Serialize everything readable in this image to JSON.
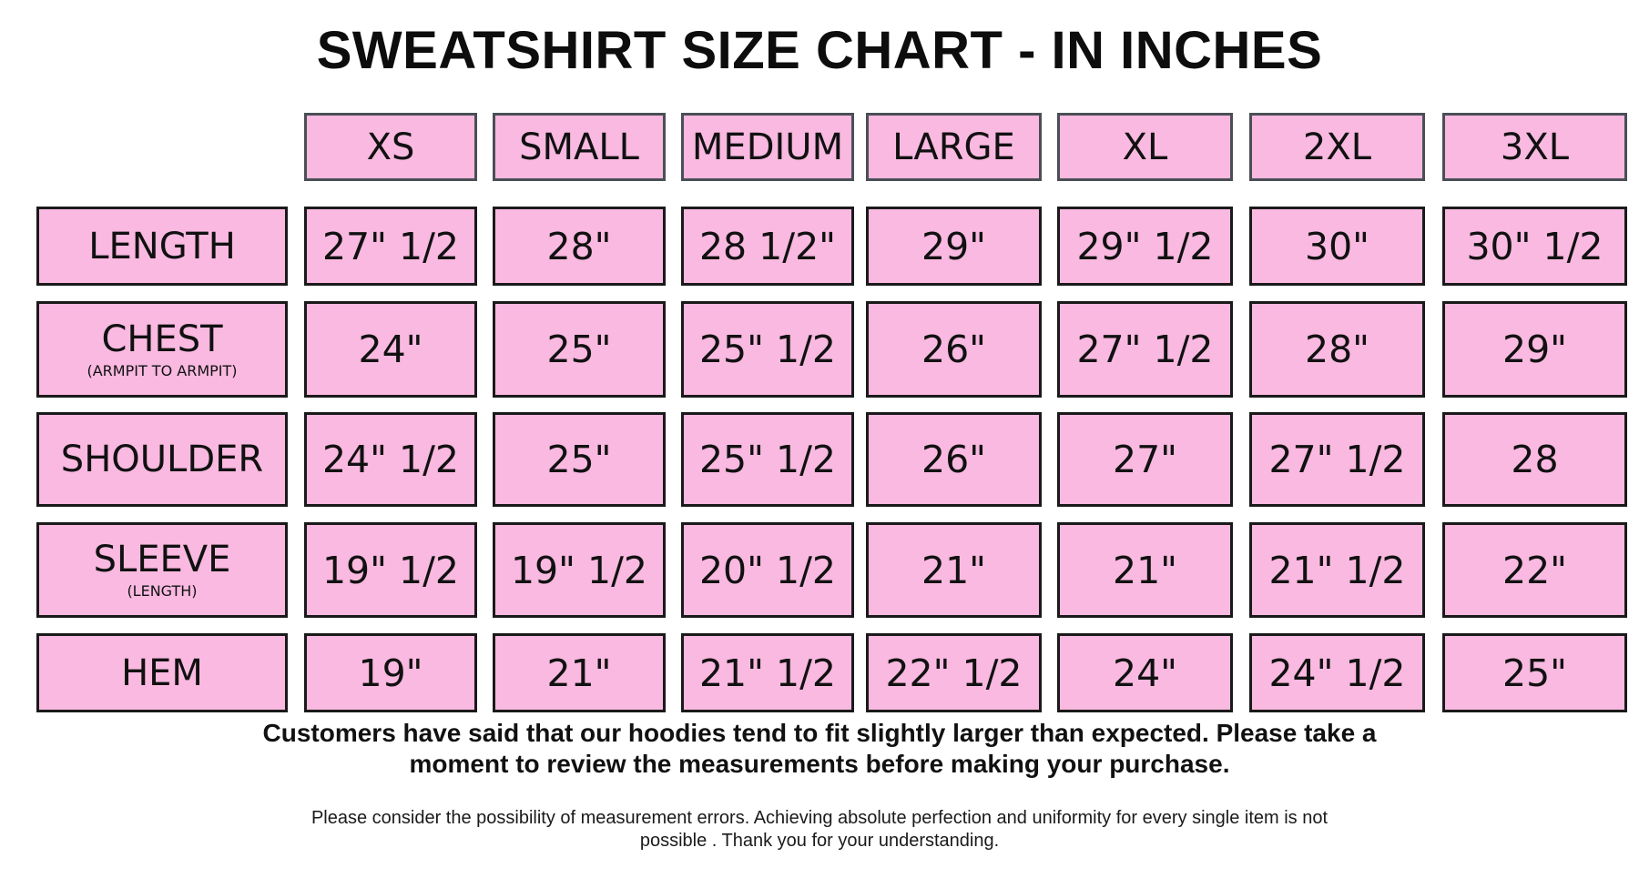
{
  "title": "SWEATSHIRT SIZE CHART - IN INCHES",
  "sizes": [
    "XS",
    "SMALL",
    "MEDIUM",
    "LARGE",
    "XL",
    "2XL",
    "3XL"
  ],
  "rows": [
    {
      "label": "LENGTH",
      "sub": "",
      "values": [
        "27\" 1/2",
        "28\"",
        "28 1/2\"",
        "29\"",
        "29\" 1/2",
        "30\"",
        "30\" 1/2"
      ]
    },
    {
      "label": "CHEST",
      "sub": "(ARMPIT TO ARMPIT)",
      "values": [
        "24\"",
        "25\"",
        "25\" 1/2",
        "26\"",
        "27\" 1/2",
        "28\"",
        "29\""
      ]
    },
    {
      "label": "SHOULDER",
      "sub": "",
      "values": [
        "24\" 1/2",
        "25\"",
        "25\" 1/2",
        "26\"",
        "27\"",
        "27\" 1/2",
        "28"
      ]
    },
    {
      "label": "SLEEVE",
      "sub": "(LENGTH)",
      "values": [
        "19\" 1/2",
        "19\" 1/2",
        "20\" 1/2",
        "21\"",
        "21\"",
        "21\" 1/2",
        "22\""
      ]
    },
    {
      "label": "HEM",
      "sub": "",
      "values": [
        "19\"",
        "21\"",
        "21\" 1/2",
        "22\" 1/2",
        "24\"",
        "24\" 1/2",
        "25\""
      ]
    }
  ],
  "note": {
    "bold_line1": "Customers have said that our hoodies tend to fit slightly larger than expected. Please take a",
    "bold_line2": "moment to review the measurements before making your purchase.",
    "small_line1": "Please consider the possibility of measurement errors. Achieving absolute perfection and uniformity for every single item is not",
    "small_line2": "possible . Thank you for your understanding."
  },
  "colors": {
    "cell_fill": "#f9b9e0",
    "border": "#1a1a1a",
    "header_border": "#4a4f55"
  }
}
